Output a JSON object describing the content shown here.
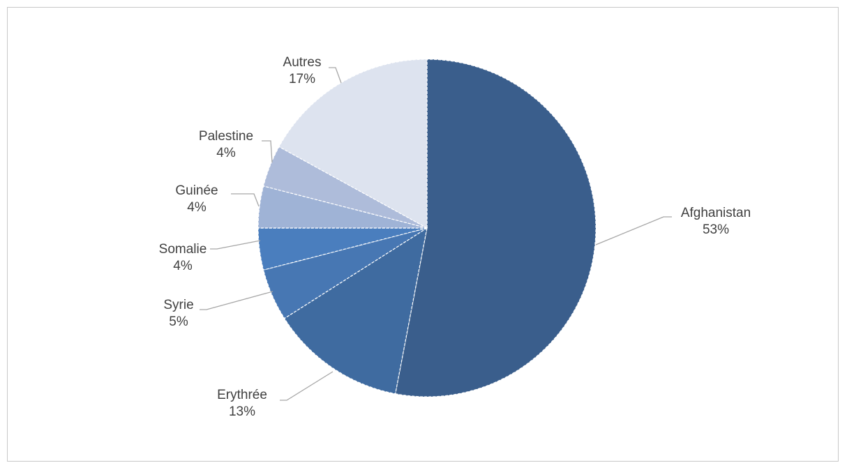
{
  "chart_data": {
    "type": "pie",
    "title": "",
    "slices": [
      {
        "label": "Afghanistan",
        "value": 53,
        "percent_label": "53%",
        "color": "#3a5e8c"
      },
      {
        "label": "Erythrée",
        "value": 13,
        "percent_label": "13%",
        "color": "#3f6ba0"
      },
      {
        "label": "Syrie",
        "value": 5,
        "percent_label": "5%",
        "color": "#4777b3"
      },
      {
        "label": "Somalie",
        "value": 4,
        "percent_label": "4%",
        "color": "#4a7ebe"
      },
      {
        "label": "Guinée",
        "value": 4,
        "percent_label": "4%",
        "color": "#9fb3d6"
      },
      {
        "label": "Palestine",
        "value": 4,
        "percent_label": "4%",
        "color": "#aebcda"
      },
      {
        "label": "Autres",
        "value": 17,
        "percent_label": "17%",
        "color": "#dde3ef"
      }
    ],
    "legend": "none",
    "data_labels": "outside with leader lines"
  }
}
